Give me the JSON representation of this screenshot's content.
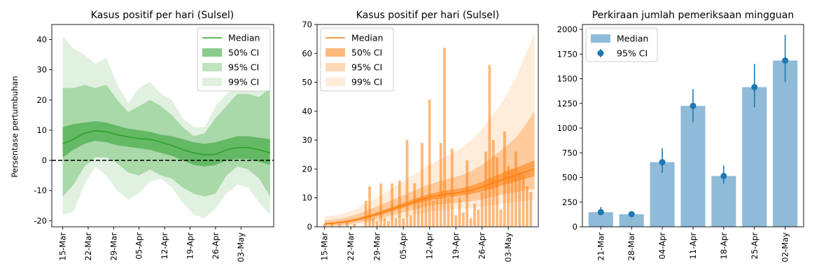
{
  "chart_data": [
    {
      "type": "area",
      "title": "Kasus positif per hari (Sulsel)",
      "xlabel": "",
      "ylabel": "Persentase pertumbuhan",
      "ylim": [
        -22,
        45
      ],
      "yticks": [
        -20,
        -10,
        0,
        10,
        20,
        30,
        40
      ],
      "xticks": [
        "15-Mar",
        "22-Mar",
        "29-Mar",
        "05-Apr",
        "12-Apr",
        "19-Apr",
        "26-Apr",
        "03-May"
      ],
      "xtick_days": [
        0,
        7,
        14,
        21,
        28,
        35,
        42,
        49
      ],
      "xlim": [
        -3,
        58
      ],
      "zero_line": true,
      "colors": {
        "median": "#2ca02c",
        "ci50": "#2ca02c",
        "ci95": "#2ca02c",
        "ci99": "#2ca02c"
      },
      "legend": {
        "position": "top-right",
        "entries": [
          "Median",
          "50% CI",
          "95% CI",
          "99% CI"
        ]
      },
      "days": [
        0,
        3,
        6,
        9,
        12,
        15,
        18,
        21,
        24,
        27,
        30,
        33,
        36,
        39,
        42,
        45,
        48,
        51,
        54,
        57
      ],
      "median": [
        5.5,
        7,
        9,
        9.8,
        9.5,
        8.5,
        7.8,
        7.2,
        7,
        6,
        5,
        3.5,
        2.5,
        1.8,
        2,
        3.5,
        4.2,
        4.3,
        3.5,
        2.5
      ],
      "ci50_low": [
        1,
        3.5,
        5.5,
        6.5,
        6,
        5,
        4.5,
        4,
        3.5,
        2.5,
        1.5,
        0,
        -1.5,
        -2,
        -1.5,
        0,
        0.5,
        0.5,
        -0.5,
        -1.5
      ],
      "ci50_high": [
        11,
        12,
        12.5,
        13,
        12.5,
        11.5,
        10.5,
        10,
        9.5,
        8.5,
        8,
        7,
        6,
        5.5,
        6,
        7,
        8,
        8,
        7.5,
        7
      ],
      "ci95_low": [
        -12,
        -8,
        -2,
        1,
        1,
        -1,
        -4,
        -5,
        -3,
        -5,
        -6,
        -9,
        -11,
        -12,
        -11,
        -5,
        -2,
        -3,
        -6,
        -12
      ],
      "ci95_high": [
        24,
        24,
        25,
        24,
        25,
        20,
        16,
        18,
        20,
        18,
        15,
        11,
        8,
        9,
        14,
        18,
        22,
        22,
        21,
        24
      ],
      "ci99_low": [
        -18,
        -17,
        -8,
        -2,
        -5,
        -10,
        -13,
        -11,
        -7,
        -6,
        -9,
        -14,
        -18,
        -19,
        -16,
        -11,
        -8,
        -9,
        -14,
        -18
      ],
      "ci99_high": [
        41,
        37,
        35,
        32,
        34,
        25,
        19,
        24,
        26,
        22,
        20,
        14,
        11,
        11,
        18,
        22,
        24,
        24,
        24,
        26
      ]
    },
    {
      "type": "bar",
      "title": "Kasus positif per hari (Sulsel)",
      "xlabel": "",
      "ylabel": "",
      "ylim": [
        0,
        70
      ],
      "yticks": [
        0,
        10,
        20,
        30,
        40,
        50,
        60,
        70
      ],
      "xticks": [
        "15-Mar",
        "22-Mar",
        "29-Mar",
        "05-Apr",
        "12-Apr",
        "19-Apr",
        "26-Apr",
        "03-May"
      ],
      "xtick_days": [
        0,
        7,
        14,
        21,
        28,
        35,
        42,
        49
      ],
      "xlim": [
        -2,
        57
      ],
      "colors": {
        "median": "#ff7f0e",
        "bars": "#ff7f0e"
      },
      "legend": {
        "position": "top-left",
        "entries": [
          "Median",
          "50% CI",
          "95% CI",
          "99% CI"
        ]
      },
      "bar_days": [
        0,
        1,
        2,
        3,
        4,
        5,
        6,
        7,
        8,
        9,
        10,
        11,
        12,
        13,
        14,
        15,
        16,
        17,
        18,
        19,
        20,
        21,
        22,
        23,
        24,
        25,
        26,
        27,
        28,
        29,
        30,
        31,
        32,
        33,
        34,
        35,
        36,
        37,
        38,
        39,
        40,
        41,
        42,
        43,
        44,
        45,
        46,
        47,
        48,
        49,
        50,
        51,
        52,
        53,
        54,
        55
      ],
      "bar_values": [
        1,
        0,
        1,
        0,
        1,
        0,
        2,
        0,
        1,
        0,
        0,
        9,
        14,
        3,
        2,
        15,
        3,
        2,
        15,
        3,
        16,
        3,
        30,
        4,
        15,
        10,
        29,
        10,
        44,
        9,
        10,
        29,
        62,
        10,
        27,
        4,
        10,
        5,
        23,
        3,
        8,
        6,
        12,
        26,
        56,
        30,
        24,
        6,
        33,
        21,
        20,
        26,
        19,
        18,
        14,
        12
      ],
      "days": [
        0,
        3,
        6,
        9,
        12,
        15,
        18,
        21,
        24,
        27,
        30,
        33,
        36,
        39,
        42,
        45,
        48,
        51,
        54,
        56
      ],
      "median": [
        1,
        1.3,
        1.8,
        2.6,
        3.6,
        4.8,
        6.1,
        7.4,
        8.7,
        9.9,
        10.8,
        11.4,
        11.9,
        12.6,
        13.8,
        15.2,
        16.6,
        17.8,
        19.2,
        20
      ],
      "ci50_low": [
        0.8,
        1.1,
        1.5,
        2.2,
        3.1,
        4.2,
        5.4,
        6.6,
        7.8,
        8.9,
        9.7,
        10.3,
        10.7,
        11.3,
        12.2,
        13.4,
        14.6,
        15.6,
        16.8,
        17.5
      ],
      "ci50_high": [
        1.3,
        1.6,
        2.2,
        3.1,
        4.2,
        5.5,
        6.9,
        8.3,
        9.7,
        11,
        12,
        12.7,
        13.3,
        14.2,
        15.6,
        17.3,
        19,
        20.4,
        22,
        23
      ],
      "ci95_low": [
        0.3,
        0.5,
        0.8,
        1.4,
        2.1,
        3,
        4,
        5,
        6,
        7,
        7.7,
        8.1,
        8.4,
        8.8,
        9.5,
        10.4,
        11.3,
        12,
        12.8,
        13.2
      ],
      "ci95_high": [
        2.2,
        2.6,
        3.3,
        4.5,
        6,
        7.6,
        9.3,
        10.9,
        12.6,
        14.2,
        15.5,
        16.6,
        17.6,
        19.2,
        21.5,
        24.3,
        27.4,
        30.8,
        36,
        40
      ],
      "ci99_low": [
        0,
        0.1,
        0.3,
        0.7,
        1.2,
        1.8,
        2.6,
        3.4,
        4.2,
        5,
        5.6,
        6,
        6.2,
        6.4,
        6.9,
        7.5,
        8.1,
        8.6,
        9.1,
        9.4
      ],
      "ci99_high": [
        3.5,
        4,
        5,
        6.6,
        8.7,
        11,
        13.4,
        15.8,
        18.3,
        20.7,
        22.8,
        24.8,
        26.9,
        29.8,
        33.8,
        38.8,
        44.5,
        51.5,
        61,
        67
      ]
    },
    {
      "type": "bar",
      "title": "Perkiraan jumlah pemeriksaan mingguan",
      "xlabel": "",
      "ylabel": "",
      "ylim": [
        0,
        2050
      ],
      "yticks": [
        0,
        250,
        500,
        750,
        1000,
        1250,
        1500,
        1750,
        2000
      ],
      "colors": {
        "bars": "#1f77b4",
        "errorbars": "#1f77b4"
      },
      "legend": {
        "position": "top-left",
        "entries": [
          "Median",
          "95% CI"
        ]
      },
      "categories": [
        "21-Mar",
        "28-Mar",
        "04-Apr",
        "11-Apr",
        "18-Apr",
        "25-Apr",
        "02-May"
      ],
      "values": [
        148,
        128,
        655,
        1225,
        515,
        1415,
        1685
      ],
      "ci_low": [
        120,
        110,
        545,
        1060,
        440,
        1210,
        1465
      ],
      "ci_high": [
        200,
        145,
        795,
        1395,
        620,
        1650,
        1945
      ]
    }
  ]
}
